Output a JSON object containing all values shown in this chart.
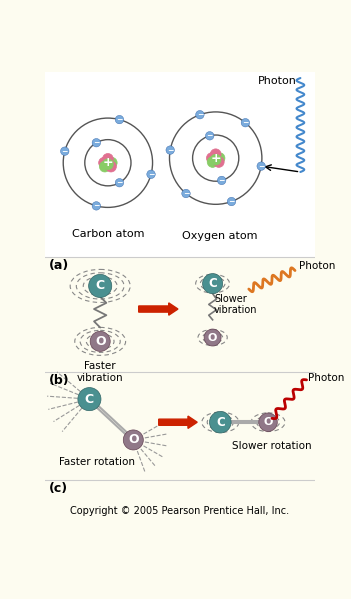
{
  "bg_color": "#fdfcf0",
  "white_bg": "#ffffff",
  "title_copyright": "Copyright © 2005 Pearson Prentice Hall, Inc.",
  "carbon_label": "Carbon atom",
  "oxygen_label": "Oxygen atom",
  "photon_label": "Photon",
  "panel_a_label": "(a)",
  "panel_b_label": "(b)",
  "panel_c_label": "(c)",
  "faster_vibration": "Faster\nvibration",
  "slower_vibration": "Slower\nvibration",
  "faster_rotation": "Faster rotation",
  "slower_rotation": "Slower rotation",
  "electron_color": "#7aabdc",
  "nucleus_proton_color": "#e07090",
  "nucleus_neutron_color": "#88cc66",
  "orbit_color": "#666666",
  "carbon_mol_color": "#4a9090",
  "oxygen_mol_color": "#907888",
  "arrow_red": "#cc2200",
  "photon_orange": "#dd7722",
  "photon_red": "#bb0000",
  "photon_blue": "#4488cc",
  "dash_color": "#999999",
  "bond_color": "#aaaaaa"
}
